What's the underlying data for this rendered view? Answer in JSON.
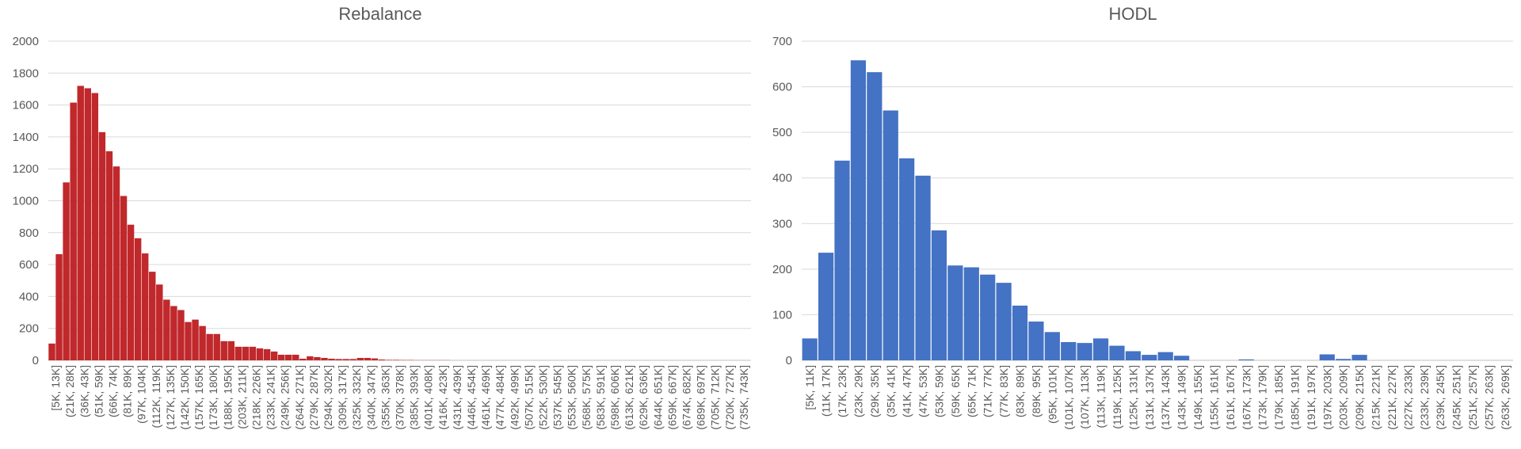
{
  "chart_data": [
    {
      "type": "bar",
      "title": "Rebalance",
      "xlabel": "",
      "ylabel": "",
      "ylim": [
        0,
        2000
      ],
      "yticks": [
        0,
        200,
        400,
        600,
        800,
        1000,
        1200,
        1400,
        1600,
        1800,
        2000
      ],
      "grid": true,
      "bar_color": "#c0282b",
      "tick_labels": [
        "[5K, 13K]",
        "(21K, 28K]",
        "(36K, 43K]",
        "(51K, 59K]",
        "(66K, 74K]",
        "(81K, 89K]",
        "(97K, 104K]",
        "(112K, 119K]",
        "(127K, 135K]",
        "(142K, 150K]",
        "(157K, 165K]",
        "(173K, 180K]",
        "(188K, 195K]",
        "(203K, 211K]",
        "(218K, 226K]",
        "(233K, 241K]",
        "(249K, 256K]",
        "(264K, 271K]",
        "(279K, 287K]",
        "(294K, 302K]",
        "(309K, 317K]",
        "(325K, 332K]",
        "(340K, 347K]",
        "(355K, 363K]",
        "(370K, 378K]",
        "(385K, 393K]",
        "(401K, 408K]",
        "(416K, 423K]",
        "(431K, 439K]",
        "(446K, 454K]",
        "(461K, 469K]",
        "(477K, 484K]",
        "(492K, 499K]",
        "(507K, 515K]",
        "(522K, 530K]",
        "(537K, 545K]",
        "(553K, 560K]",
        "(568K, 575K]",
        "(583K, 591K]",
        "(598K, 606K]",
        "(613K, 621K]",
        "(629K, 636K]",
        "(644K, 651K]",
        "(659K, 667K]",
        "(674K, 682K]",
        "(689K, 697K]",
        "(705K, 712K]",
        "(720K, 727K]",
        "(735K, 743K]"
      ],
      "values": [
        105,
        665,
        1115,
        1615,
        1720,
        1705,
        1675,
        1430,
        1310,
        1215,
        1030,
        850,
        765,
        670,
        555,
        475,
        380,
        340,
        315,
        240,
        255,
        215,
        165,
        165,
        120,
        120,
        85,
        85,
        85,
        75,
        70,
        55,
        35,
        35,
        35,
        10,
        25,
        20,
        15,
        10,
        8,
        8,
        8,
        15,
        15,
        12,
        5,
        3,
        3,
        2,
        2,
        1,
        1,
        1,
        1,
        1,
        0,
        0,
        0,
        0,
        0,
        0,
        0,
        0,
        0,
        0,
        0,
        0,
        0,
        0,
        0,
        0,
        0,
        0,
        0,
        0,
        0,
        0,
        0,
        0,
        0,
        0,
        0,
        0,
        0,
        0,
        0,
        0,
        0,
        0,
        0,
        0,
        0,
        0,
        0,
        0,
        0,
        0
      ]
    },
    {
      "type": "bar",
      "title": "HODL",
      "xlabel": "",
      "ylabel": "",
      "ylim": [
        0,
        700
      ],
      "yticks": [
        0,
        100,
        200,
        300,
        400,
        500,
        600,
        700
      ],
      "grid": true,
      "bar_color": "#4472c4",
      "tick_labels": [
        "[5K, 11K]",
        "(11K, 17K]",
        "(17K, 23K]",
        "(23K, 29K]",
        "(29K, 35K]",
        "(35K, 41K]",
        "(41K, 47K]",
        "(47K, 53K]",
        "(53K, 59K]",
        "(59K, 65K]",
        "(65K, 71K]",
        "(71K, 77K]",
        "(77K, 83K]",
        "(83K, 89K]",
        "(89K, 95K]",
        "(95K, 101K]",
        "(101K, 107K]",
        "(107K, 113K]",
        "(113K, 119K]",
        "(119K, 125K]",
        "(125K, 131K]",
        "(131K, 137K]",
        "(137K, 143K]",
        "(143K, 149K]",
        "(149K, 155K]",
        "(155K, 161K]",
        "(161K, 167K]",
        "(167K, 173K]",
        "(173K, 179K]",
        "(179K, 185K]",
        "(185K, 191K]",
        "(191K, 197K]",
        "(197K, 203K]",
        "(203K, 209K]",
        "(209K, 215K]",
        "(215K, 221K]",
        "(221K, 227K]",
        "(227K, 233K]",
        "(233K, 239K]",
        "(239K, 245K]",
        "(245K, 251K]",
        "(251K, 257K]",
        "(257K, 263K]",
        "(263K, 269K]"
      ],
      "values": [
        48,
        236,
        438,
        658,
        632,
        548,
        443,
        405,
        285,
        208,
        204,
        188,
        170,
        120,
        85,
        62,
        40,
        38,
        48,
        32,
        20,
        12,
        18,
        10,
        0,
        0,
        0,
        2,
        0,
        0,
        0,
        0,
        13,
        3,
        12,
        0,
        0,
        0,
        0,
        0,
        0,
        0,
        0,
        0
      ]
    }
  ]
}
